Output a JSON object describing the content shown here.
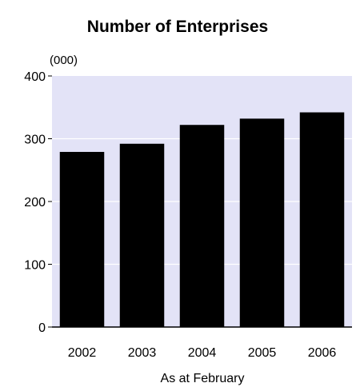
{
  "chart_data": {
    "type": "bar",
    "title": "Number of Enterprises",
    "unit_label": "(000)",
    "xlabel": "As at February",
    "ylabel": "",
    "categories": [
      "2002",
      "2003",
      "2004",
      "2005",
      "2006"
    ],
    "values": [
      279,
      292,
      322,
      332,
      342
    ],
    "ylim": [
      0,
      400
    ],
    "yticks": [
      "0",
      "100",
      "200",
      "300",
      "400"
    ],
    "grid": true,
    "legend": "none",
    "colors": {
      "plot_background": "#e3e3f7",
      "bar": "#000000",
      "gridline": "#ffffff",
      "axis": "#000000"
    }
  }
}
